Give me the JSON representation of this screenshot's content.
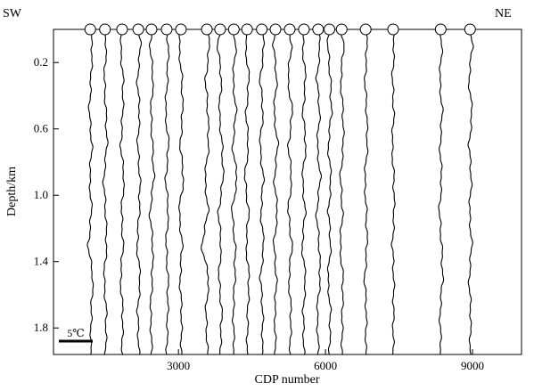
{
  "chart_data": {
    "type": "line",
    "title": "",
    "xlabel": "CDP number",
    "ylabel": "Depth/km",
    "xlim": [
      450,
      10000
    ],
    "ylim": [
      0.0,
      1.96
    ],
    "y_inverted": true,
    "x_ticks": [
      3000,
      6000,
      9000
    ],
    "x_tick_labels": [
      "3000",
      "6000",
      "9000"
    ],
    "y_ticks": [
      0.2,
      0.6,
      1.0,
      1.4,
      1.8
    ],
    "y_tick_labels": [
      "0.2",
      "0.6",
      "1.0",
      "1.4",
      "1.8"
    ],
    "left_end_label": "SW",
    "right_end_label": "NE",
    "scale_bar_label": "5℃",
    "scale_bar_value": 5,
    "grid": false,
    "profile_cdps": [
      1200,
      1500,
      1850,
      2180,
      2450,
      2760,
      3050,
      3580,
      3850,
      4130,
      4400,
      4700,
      4980,
      5270,
      5560,
      5850,
      6080,
      6330,
      6820,
      7380,
      8350,
      8950
    ],
    "series": [
      {
        "cdp": 1200,
        "depth_km": [
          0.0,
          0.1,
          0.3,
          0.5,
          0.7,
          0.9,
          1.1,
          1.3,
          1.5,
          1.7,
          1.96
        ],
        "deviation": [
          0,
          0.6,
          0.2,
          -0.3,
          0.5,
          -0.2,
          0.4,
          -0.6,
          0.8,
          0.3,
          0.1
        ]
      },
      {
        "cdp": 1500,
        "depth_km": [
          0.0,
          0.1,
          0.3,
          0.5,
          0.7,
          0.9,
          1.1,
          1.3,
          1.5,
          1.7,
          1.96
        ],
        "deviation": [
          0,
          0.4,
          -0.2,
          0.3,
          0.6,
          -0.4,
          0.2,
          0.5,
          -0.3,
          0.4,
          0.2
        ]
      },
      {
        "cdp": 1850,
        "depth_km": [
          0.0,
          0.1,
          0.3,
          0.5,
          0.7,
          0.9,
          1.1,
          1.3,
          1.5,
          1.7,
          1.96
        ],
        "deviation": [
          0,
          -0.5,
          0.3,
          0.2,
          -0.4,
          0.6,
          -0.2,
          0.3,
          -0.5,
          0.2,
          0.0
        ]
      },
      {
        "cdp": 2180,
        "depth_km": [
          0.0,
          0.1,
          0.3,
          0.5,
          0.7,
          0.9,
          1.1,
          1.3,
          1.5,
          1.7,
          1.96
        ],
        "deviation": [
          0,
          0.7,
          -0.3,
          0.4,
          -0.2,
          0.5,
          0.3,
          -0.4,
          0.6,
          -0.2,
          0.2
        ]
      },
      {
        "cdp": 2450,
        "depth_km": [
          0.0,
          0.1,
          0.3,
          0.5,
          0.7,
          0.9,
          1.1,
          1.3,
          1.5,
          1.7,
          1.96
        ],
        "deviation": [
          0,
          -0.4,
          0.5,
          -0.2,
          0.3,
          0.7,
          -0.5,
          0.4,
          0.2,
          -0.3,
          0.1
        ]
      },
      {
        "cdp": 2760,
        "depth_km": [
          0.0,
          0.1,
          0.3,
          0.5,
          0.7,
          0.9,
          1.1,
          1.3,
          1.5,
          1.7,
          1.96
        ],
        "deviation": [
          0,
          0.5,
          0.2,
          -0.4,
          0.6,
          -0.3,
          0.5,
          -0.2,
          0.4,
          0.3,
          0.0
        ]
      },
      {
        "cdp": 3050,
        "depth_km": [
          0.0,
          0.1,
          0.3,
          0.5,
          0.7,
          0.9,
          1.1,
          1.3,
          1.5,
          1.7,
          1.96
        ],
        "deviation": [
          0,
          -0.6,
          0.3,
          0.5,
          -0.2,
          0.8,
          -0.6,
          0.4,
          -0.3,
          0.2,
          0.1
        ]
      },
      {
        "cdp": 3580,
        "depth_km": [
          0.0,
          0.1,
          0.3,
          0.5,
          0.7,
          0.9,
          1.1,
          1.3,
          1.5,
          1.7,
          1.96
        ],
        "deviation": [
          0,
          0.8,
          -0.4,
          0.3,
          0.5,
          -0.6,
          0.4,
          -1.6,
          0.6,
          -0.3,
          0.2
        ]
      },
      {
        "cdp": 3850,
        "depth_km": [
          0.0,
          0.1,
          0.3,
          0.5,
          0.7,
          0.9,
          1.1,
          1.3,
          1.5,
          1.7,
          1.96
        ],
        "deviation": [
          0,
          -0.7,
          0.4,
          -0.3,
          0.6,
          0.9,
          -0.5,
          0.3,
          -0.4,
          0.5,
          0.0
        ]
      },
      {
        "cdp": 4130,
        "depth_km": [
          0.0,
          0.1,
          0.3,
          0.5,
          0.7,
          0.9,
          1.1,
          1.3,
          1.5,
          1.7,
          1.96
        ],
        "deviation": [
          0,
          0.6,
          -0.3,
          0.7,
          -0.4,
          1.0,
          -0.6,
          0.4,
          0.3,
          -0.2,
          0.1
        ]
      },
      {
        "cdp": 4400,
        "depth_km": [
          0.0,
          0.1,
          0.3,
          0.5,
          0.7,
          0.9,
          1.1,
          1.3,
          1.5,
          1.7,
          1.96
        ],
        "deviation": [
          0,
          -0.5,
          0.6,
          -0.3,
          0.4,
          -0.7,
          0.5,
          -0.3,
          0.6,
          0.2,
          0.0
        ]
      },
      {
        "cdp": 4700,
        "depth_km": [
          0.0,
          0.1,
          0.3,
          0.5,
          0.7,
          0.9,
          1.1,
          1.3,
          1.5,
          1.7,
          1.96
        ],
        "deviation": [
          0,
          0.7,
          -0.5,
          0.4,
          -0.6,
          0.5,
          -0.3,
          0.6,
          -0.4,
          0.3,
          0.1
        ]
      },
      {
        "cdp": 4980,
        "depth_km": [
          0.0,
          0.1,
          0.3,
          0.5,
          0.7,
          0.9,
          1.1,
          1.3,
          1.5,
          1.7,
          1.96
        ],
        "deviation": [
          0,
          -0.6,
          0.4,
          -0.5,
          0.7,
          -0.4,
          0.6,
          -0.5,
          0.3,
          -0.2,
          0.0
        ]
      },
      {
        "cdp": 5270,
        "depth_km": [
          0.0,
          0.1,
          0.3,
          0.5,
          0.7,
          0.9,
          1.1,
          1.3,
          1.5,
          1.7,
          1.96
        ],
        "deviation": [
          0,
          0.5,
          -0.6,
          0.8,
          -0.4,
          0.6,
          -0.5,
          0.7,
          -0.3,
          0.4,
          0.1
        ]
      },
      {
        "cdp": 5560,
        "depth_km": [
          0.0,
          0.1,
          0.3,
          0.5,
          0.7,
          0.9,
          1.1,
          1.3,
          1.5,
          1.7,
          1.96
        ],
        "deviation": [
          0,
          -0.4,
          0.5,
          -0.3,
          0.6,
          -0.5,
          0.4,
          -0.6,
          0.5,
          -0.2,
          0.0
        ]
      },
      {
        "cdp": 5850,
        "depth_km": [
          0.0,
          0.1,
          0.3,
          0.5,
          0.7,
          0.9,
          1.1,
          1.3,
          1.5,
          1.7,
          1.96
        ],
        "deviation": [
          0,
          0.6,
          -0.4,
          0.5,
          -0.3,
          0.7,
          -0.5,
          0.3,
          0.6,
          -0.3,
          0.1
        ]
      },
      {
        "cdp": 6080,
        "depth_km": [
          0.0,
          0.1,
          0.3,
          0.5,
          0.7,
          0.9,
          1.1,
          1.3,
          1.5,
          1.7,
          1.96
        ],
        "deviation": [
          0,
          -0.5,
          0.3,
          0.6,
          -0.4,
          0.5,
          -0.3,
          0.4,
          -0.5,
          0.3,
          0.0
        ]
      },
      {
        "cdp": 6330,
        "depth_km": [
          0.0,
          0.1,
          0.3,
          0.5,
          0.7,
          0.9,
          1.1,
          1.3,
          1.5,
          1.7,
          1.96
        ],
        "deviation": [
          0,
          0.6,
          -0.3,
          0.4,
          0.5,
          -0.4,
          0.3,
          -0.5,
          0.4,
          0.2,
          0.1
        ]
      },
      {
        "cdp": 6820,
        "depth_km": [
          0.0,
          0.1,
          0.3,
          0.5,
          0.7,
          0.9,
          1.1,
          1.3,
          1.5,
          1.7,
          1.96
        ],
        "deviation": [
          0,
          0.4,
          -0.2,
          0.3,
          0.5,
          -0.3,
          0.2,
          0.4,
          -0.3,
          0.2,
          0.0
        ]
      },
      {
        "cdp": 7380,
        "depth_km": [
          0.0,
          0.1,
          0.3,
          0.5,
          0.7,
          0.9,
          1.1,
          1.3,
          1.5,
          1.7,
          1.96
        ],
        "deviation": [
          0,
          0.3,
          -0.2,
          0.2,
          -0.3,
          0.2,
          0.3,
          -0.2,
          0.2,
          0.1,
          0.0
        ]
      },
      {
        "cdp": 8350,
        "depth_km": [
          0.0,
          0.1,
          0.3,
          0.5,
          0.7,
          0.9,
          1.1,
          1.3,
          1.5,
          1.7,
          1.96
        ],
        "deviation": [
          0,
          0.4,
          -0.3,
          0.5,
          -0.2,
          0.3,
          -0.4,
          0.3,
          0.6,
          -0.2,
          0.1
        ]
      },
      {
        "cdp": 8950,
        "depth_km": [
          0.0,
          0.1,
          0.3,
          0.5,
          0.7,
          0.9,
          1.1,
          1.3,
          1.5,
          1.7,
          1.96
        ],
        "deviation": [
          0,
          0.7,
          -0.4,
          0.6,
          -0.3,
          0.4,
          -0.2,
          0.5,
          -0.3,
          0.2,
          0.0
        ]
      }
    ]
  }
}
